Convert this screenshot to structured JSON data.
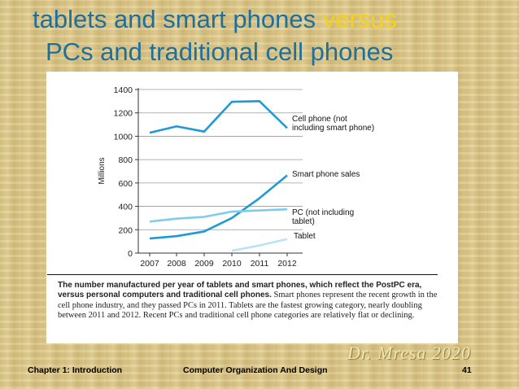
{
  "slide": {
    "title_part1": "tablets and smart phones ",
    "title_highlight": "versus",
    "title_line2": "PCs and traditional cell phones",
    "signature": "Dr. Mresa 2020",
    "footer_left": "Chapter 1: Introduction",
    "footer_center": "Computer Organization And Design",
    "footer_page": "41"
  },
  "caption": {
    "bold": "The number manufactured per year of tablets and smart phones, which reflect the PostPC era, versus personal computers and traditional cell phones.",
    "text": " Smart phones represent the recent growth in the cell phone industry, and they passed PCs in 2011. Tablets are the fastest growing category, nearly doubling between 2011 and 2012. Recent PCs and traditional cell phone categories are relatively flat or declining."
  },
  "colors": {
    "title": "#1f6f9c",
    "highlight": "#f5d21a",
    "cell": "#1f9ad6",
    "smart": "#1f9ad6",
    "pc": "#7fcbec",
    "tablet": "#b9e3f5"
  },
  "chart_data": {
    "type": "line",
    "title": "",
    "xlabel": "",
    "ylabel": "Millions",
    "x": [
      "2007",
      "2008",
      "2009",
      "2010",
      "2011",
      "2012"
    ],
    "ylim": [
      0,
      1400
    ],
    "yticks": [
      "0",
      "200",
      "400",
      "600",
      "800",
      "1000",
      "1200",
      "1400"
    ],
    "grid": true,
    "series": [
      {
        "key": "cell",
        "name": "Cell phone (not including smart phone)",
        "label_lines": [
          "Cell phone (not",
          "including smart phone)"
        ],
        "values": [
          1030,
          1085,
          1040,
          1295,
          1300,
          1070
        ]
      },
      {
        "key": "smart",
        "name": "Smart phone sales",
        "label_lines": [
          "Smart phone sales"
        ],
        "values": [
          125,
          145,
          185,
          300,
          470,
          665
        ]
      },
      {
        "key": "pc",
        "name": "PC (not including tablet)",
        "label_lines": [
          "PC (not including",
          "tablet)"
        ],
        "values": [
          270,
          295,
          310,
          355,
          365,
          375
        ]
      },
      {
        "key": "tablet",
        "name": "Tablet",
        "label_lines": [
          "Tablet"
        ],
        "values": [
          null,
          null,
          null,
          20,
          65,
          120
        ]
      }
    ]
  }
}
